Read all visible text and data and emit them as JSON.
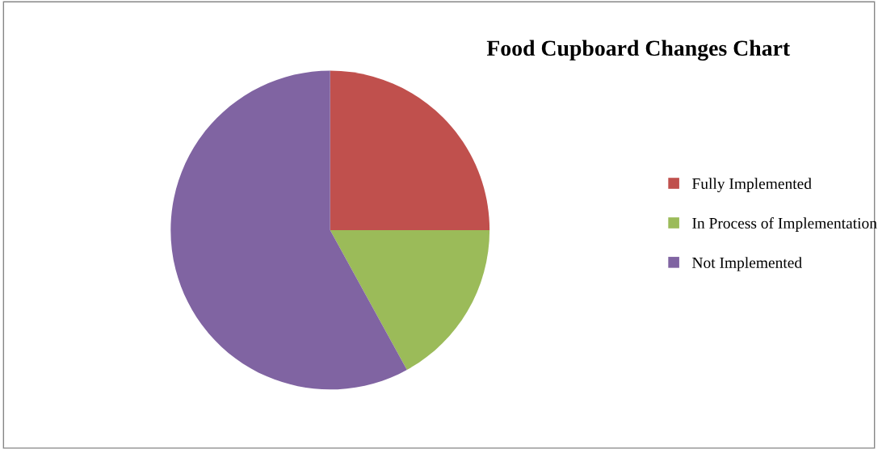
{
  "chart_data": {
    "type": "pie",
    "title": "Food Cupboard Changes Chart",
    "categories": [
      "Fully Implemented",
      "In Process of Implementation",
      "Not Implemented"
    ],
    "values": [
      25,
      17,
      58
    ],
    "colors": [
      "#c0504d",
      "#9bbb59",
      "#8064a2"
    ],
    "legend": "right"
  }
}
